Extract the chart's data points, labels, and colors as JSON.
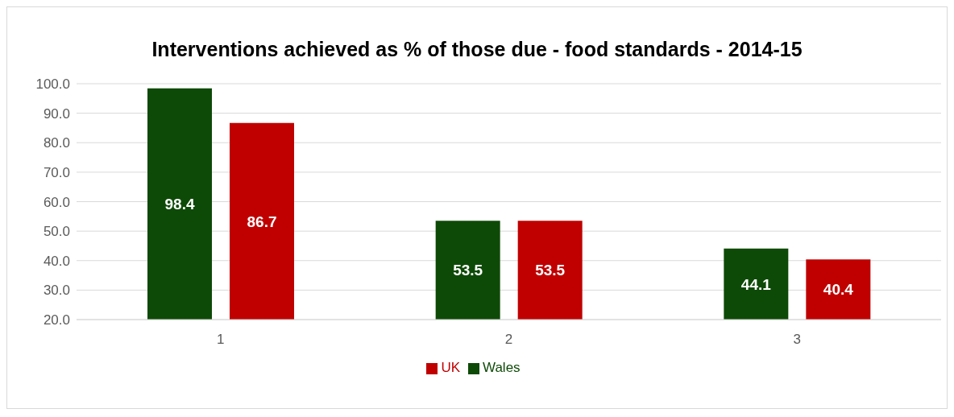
{
  "chart_data": {
    "type": "bar",
    "title": "Interventions achieved as % of those due - food standards - 2014-15",
    "categories": [
      "1",
      "2",
      "3"
    ],
    "series": [
      {
        "name": "Wales",
        "color": "#0e4a07",
        "values": [
          98.4,
          53.5,
          44.1
        ]
      },
      {
        "name": "UK",
        "color": "#c00000",
        "values": [
          86.7,
          53.5,
          40.4
        ]
      }
    ],
    "ylim": [
      20,
      100
    ],
    "yticks": [
      {
        "value": 20,
        "label": "20.0"
      },
      {
        "value": 30,
        "label": "30.0"
      },
      {
        "value": 40,
        "label": "40.0"
      },
      {
        "value": 50,
        "label": "50.0"
      },
      {
        "value": 60,
        "label": "60.0"
      },
      {
        "value": 70,
        "label": "70.0"
      },
      {
        "value": 80,
        "label": "80.0"
      },
      {
        "value": 90,
        "label": "90.0"
      },
      {
        "value": 100,
        "label": "100.0"
      }
    ],
    "grid": "y",
    "legend": "bottom",
    "data_labels": true
  }
}
